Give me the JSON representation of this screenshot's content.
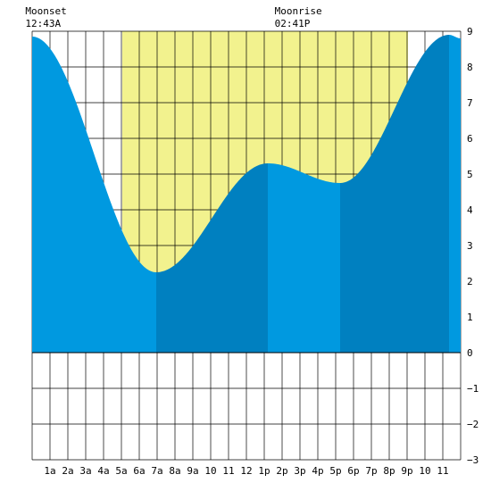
{
  "chart_data": {
    "type": "area",
    "title": "",
    "xlabel": "",
    "ylabel": "",
    "xlim": [
      0,
      24
    ],
    "ylim": [
      -3,
      9
    ],
    "yticks": [
      -3,
      -2,
      -1,
      0,
      1,
      2,
      3,
      4,
      5,
      6,
      7,
      8,
      9
    ],
    "xticks": [
      {
        "x": 1,
        "label": "1a"
      },
      {
        "x": 2,
        "label": "2a"
      },
      {
        "x": 3,
        "label": "3a"
      },
      {
        "x": 4,
        "label": "4a"
      },
      {
        "x": 5,
        "label": "5a"
      },
      {
        "x": 6,
        "label": "6a"
      },
      {
        "x": 7,
        "label": "7a"
      },
      {
        "x": 8,
        "label": "8a"
      },
      {
        "x": 9,
        "label": "9a"
      },
      {
        "x": 10,
        "label": "10"
      },
      {
        "x": 11,
        "label": "11"
      },
      {
        "x": 12,
        "label": "12"
      },
      {
        "x": 13,
        "label": "1p"
      },
      {
        "x": 14,
        "label": "2p"
      },
      {
        "x": 15,
        "label": "3p"
      },
      {
        "x": 16,
        "label": "4p"
      },
      {
        "x": 17,
        "label": "5p"
      },
      {
        "x": 18,
        "label": "6p"
      },
      {
        "x": 19,
        "label": "7p"
      },
      {
        "x": 20,
        "label": "8p"
      },
      {
        "x": 21,
        "label": "9p"
      },
      {
        "x": 22,
        "label": "10"
      },
      {
        "x": 23,
        "label": "11"
      }
    ],
    "daylight": {
      "start": 5.05,
      "end": 21.05
    },
    "tide_extremes": [
      {
        "t": 0.0,
        "h": 8.85
      },
      {
        "t": 6.95,
        "h": 2.25
      },
      {
        "t": 13.2,
        "h": 5.3
      },
      {
        "t": 17.25,
        "h": 4.75
      },
      {
        "t": 23.35,
        "h": 8.9
      }
    ],
    "tide_end": {
      "t": 24.0,
      "h": 8.8
    },
    "moon_events": [
      {
        "name": "Moonset",
        "time": "12:43A",
        "t": 0.72
      },
      {
        "name": "Moonrise",
        "time": "02:41P",
        "t": 14.68
      }
    ],
    "colors": {
      "daylight": "#f2f28e",
      "tide_light": "#0099e0",
      "tide_dark": "#0080c0",
      "grid": "#000000"
    }
  }
}
